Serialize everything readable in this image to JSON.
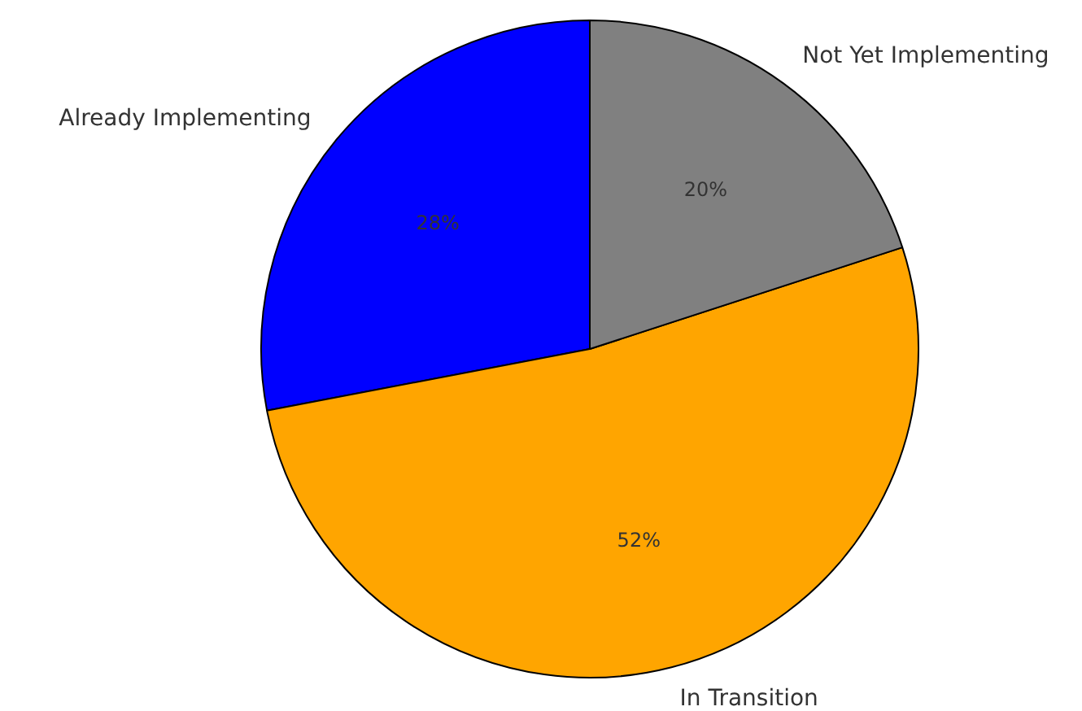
{
  "chart_data": {
    "type": "pie",
    "categories": [
      "Already Implementing",
      "In Transition",
      "Not Yet Implementing"
    ],
    "values": [
      28,
      52,
      20
    ],
    "colors": [
      "#0000ff",
      "#ffa500",
      "#808080"
    ],
    "value_labels": [
      "28%",
      "52%",
      "20%"
    ]
  }
}
